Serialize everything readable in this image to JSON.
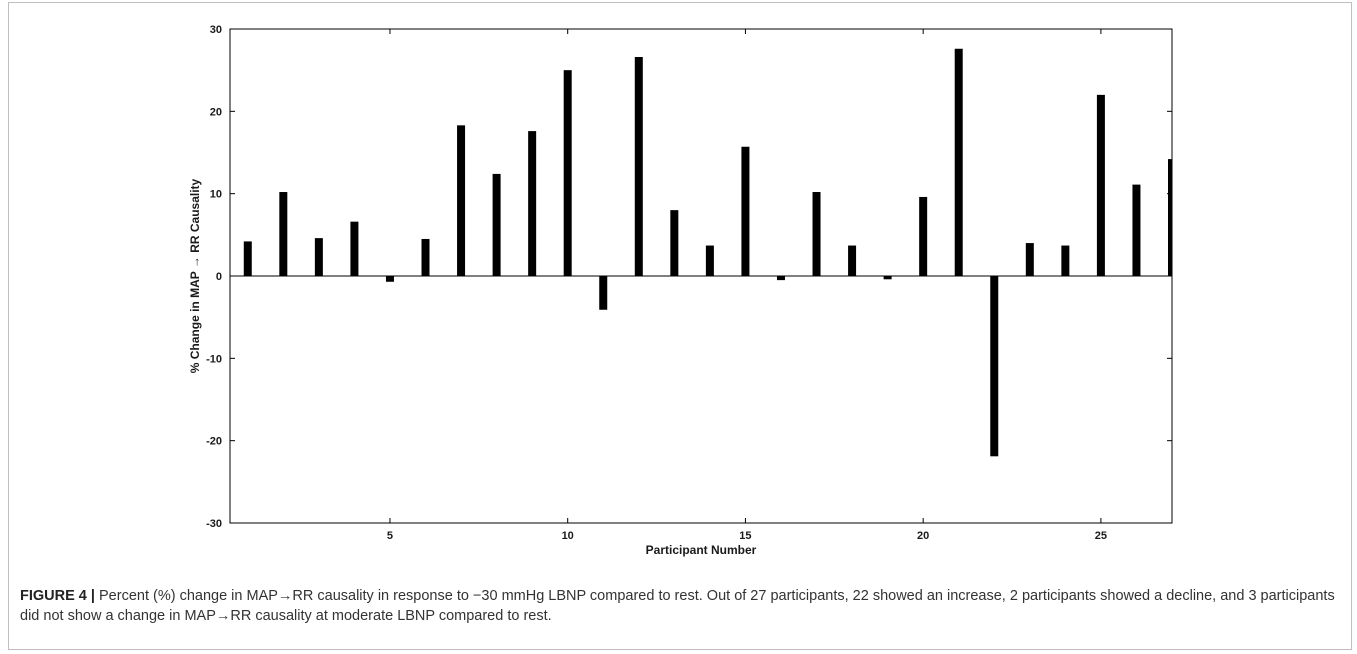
{
  "chart_data": {
    "type": "bar",
    "ylabel": "% Change in MAP → RR Causality",
    "xlabel": "Participant Number",
    "x": [
      1,
      2,
      3,
      4,
      5,
      6,
      7,
      8,
      9,
      10,
      11,
      12,
      13,
      14,
      15,
      16,
      17,
      18,
      19,
      20,
      21,
      22,
      23,
      24,
      25,
      26,
      27
    ],
    "values": [
      4.2,
      10.2,
      4.6,
      6.6,
      -0.7,
      4.5,
      18.3,
      12.4,
      17.6,
      25.0,
      -4.1,
      26.6,
      8.0,
      3.7,
      15.7,
      -0.5,
      10.2,
      3.7,
      -0.4,
      9.6,
      27.6,
      -21.9,
      4.0,
      3.7,
      22.0,
      11.1,
      14.2
    ],
    "ylim": [
      -30,
      30
    ],
    "xlim": [
      1,
      27
    ],
    "yticks": [
      -30,
      -20,
      -10,
      0,
      10,
      20,
      30
    ],
    "xticks": [
      5,
      10,
      15,
      20,
      25
    ],
    "bar_color": "#000000",
    "grid": false
  },
  "caption": {
    "label": "FIGURE 4 |",
    "text": "Percent (%) change in MAP→RR causality in response to −30 mmHg LBNP compared to rest. Out of 27 participants, 22 showed an increase, 2 participants showed a decline, and 3 participants did not show a change in MAP→RR causality at moderate LBNP compared to rest."
  }
}
